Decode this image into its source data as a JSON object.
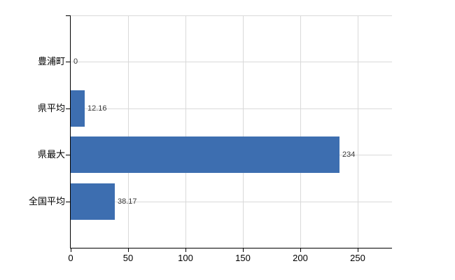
{
  "title": "",
  "background_color": "#ffffff",
  "chart_data": {
    "type": "bar",
    "orientation": "horizontal",
    "categories": [
      "豊浦町",
      "県平均",
      "県最大",
      "全国平均"
    ],
    "values": [
      0,
      12.16,
      234,
      38.17
    ],
    "value_labels": [
      "0",
      "12.16",
      "234",
      "38.17"
    ],
    "x_ticks": [
      0,
      50,
      100,
      150,
      200,
      250
    ],
    "x_tick_labels": [
      "0",
      "50",
      "100",
      "150",
      "200",
      "250"
    ],
    "xlim": [
      0,
      280
    ],
    "xlabel": "",
    "ylabel": "",
    "grid": true,
    "legend": "none",
    "colors": {
      "bar": "#3d6eb0",
      "grid": "#d9d9d9",
      "axis": "#000000",
      "value_label": "#3a3a3a",
      "category_label": "#000000",
      "tick_label": "#000000",
      "plot_top_border": "#d9d9d9"
    }
  }
}
